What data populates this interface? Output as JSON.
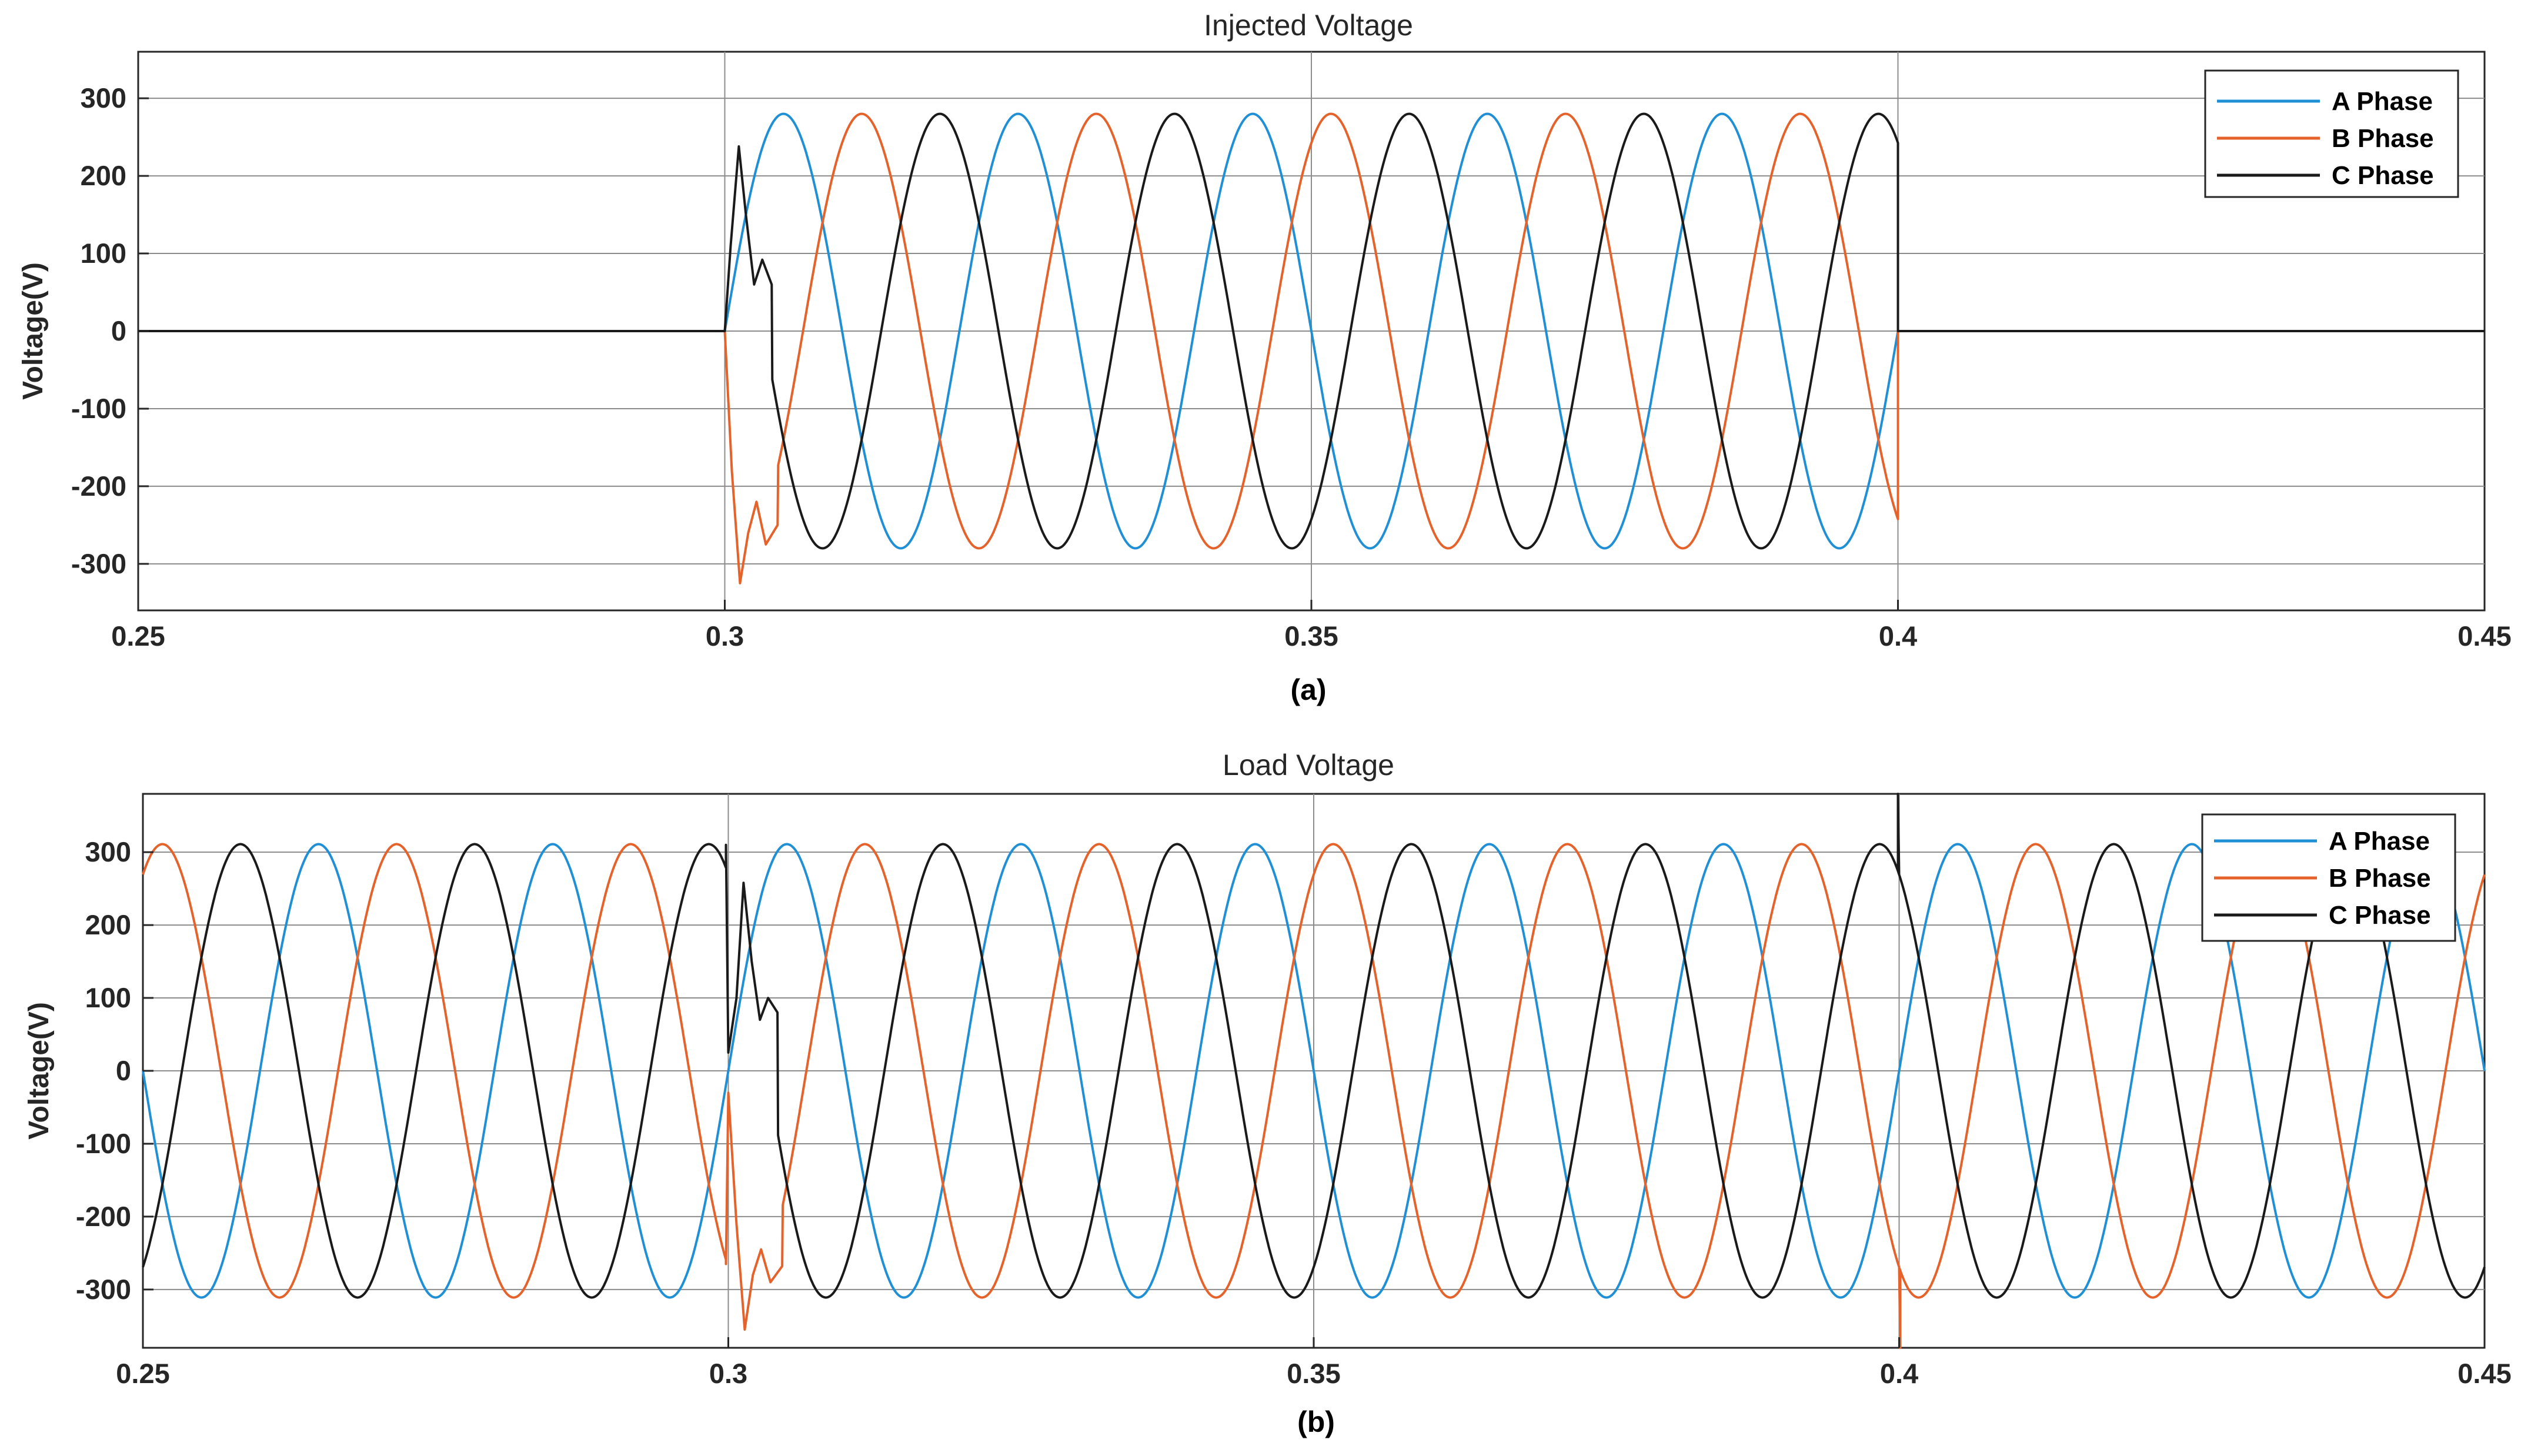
{
  "chart_data": [
    {
      "type": "line",
      "title": "Injected Voltage",
      "subtitle": "(a)",
      "xlabel": "",
      "ylabel": "Voltage(V)",
      "xlim": [
        0.25,
        0.45
      ],
      "ylim": [
        -360,
        360
      ],
      "xticks": [
        "0.25",
        "0.3",
        "0.35",
        "0.4",
        "0.45"
      ],
      "yticks": [
        "300",
        "200",
        "100",
        "0",
        "-100",
        "-200",
        "-300"
      ],
      "grid": true,
      "legend_position": "top-right",
      "injection_window": [
        0.3,
        0.4
      ],
      "frequency_hz": 50,
      "amplitude": 280,
      "series": [
        {
          "name": "A Phase",
          "color": "#1f8fd6",
          "phase_deg": 0
        },
        {
          "name": "B Phase",
          "color": "#e5622a",
          "phase_deg": -120
        },
        {
          "name": "C Phase",
          "color": "#1a1a1a",
          "phase_deg": 120
        }
      ],
      "transients": {
        "C Phase": [
          [
            0.3,
            0
          ],
          [
            0.3005,
            110
          ],
          [
            0.3012,
            238
          ],
          [
            0.3018,
            150
          ],
          [
            0.3025,
            60
          ],
          [
            0.3032,
            92
          ],
          [
            0.304,
            60
          ]
        ],
        "B Phase": [
          [
            0.3,
            0
          ],
          [
            0.3006,
            -180
          ],
          [
            0.3013,
            -325
          ],
          [
            0.302,
            -260
          ],
          [
            0.3027,
            -220
          ],
          [
            0.3035,
            -275
          ],
          [
            0.3045,
            -250
          ]
        ]
      }
    },
    {
      "type": "line",
      "title": "Load Voltage",
      "subtitle": "(b)",
      "xlabel": "",
      "ylabel": "Voltage(V)",
      "xlim": [
        0.25,
        0.45
      ],
      "ylim": [
        -380,
        380
      ],
      "xticks": [
        "0.25",
        "0.3",
        "0.35",
        "0.4",
        "0.45"
      ],
      "yticks": [
        "300",
        "200",
        "100",
        "0",
        "-100",
        "-200",
        "-300"
      ],
      "grid": true,
      "legend_position": "top-right",
      "frequency_hz": 50,
      "amplitude": 311,
      "series": [
        {
          "name": "A Phase",
          "color": "#1f8fd6",
          "phase_deg": 0
        },
        {
          "name": "B Phase",
          "color": "#e5622a",
          "phase_deg": -120
        },
        {
          "name": "C Phase",
          "color": "#1a1a1a",
          "phase_deg": 120
        }
      ],
      "transients": {
        "C Phase": [
          [
            0.2998,
            310
          ],
          [
            0.3,
            25
          ],
          [
            0.3007,
            100
          ],
          [
            0.3013,
            258
          ],
          [
            0.302,
            150
          ],
          [
            0.3027,
            70
          ],
          [
            0.3034,
            100
          ],
          [
            0.3042,
            80
          ]
        ],
        "B Phase": [
          [
            0.2998,
            -265
          ],
          [
            0.3,
            -30
          ],
          [
            0.3007,
            -210
          ],
          [
            0.3014,
            -355
          ],
          [
            0.3021,
            -280
          ],
          [
            0.3028,
            -245
          ],
          [
            0.3036,
            -290
          ],
          [
            0.3046,
            -268
          ]
        ],
        "spikes_0_4": [
          [
            0.3999,
            380
          ],
          [
            0.4001,
            -380
          ]
        ]
      }
    }
  ]
}
